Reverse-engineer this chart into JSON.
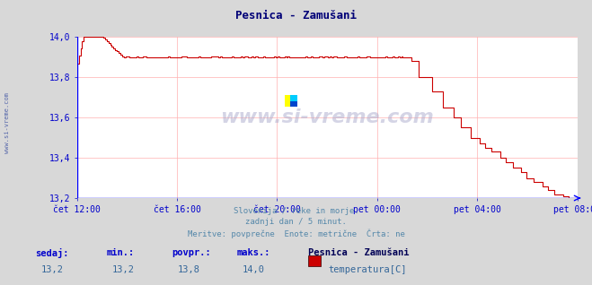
{
  "title": "Pesnica - Zamušani",
  "bg_color": "#d8d8d8",
  "plot_bg_color": "#ffffff",
  "line_color": "#cc0000",
  "grid_color": "#ffb0b0",
  "axis_color": "#0000cc",
  "title_color": "#000077",
  "watermark": "www.si-vreme.com",
  "subtitle1": "Slovenija / reke in morje.",
  "subtitle2": "zadnji dan / 5 minut.",
  "subtitle3": "Meritve: povprečne  Enote: metrične  Črta: ne",
  "legend_station": "Pesnica - Zamušani",
  "legend_param": "temperatura[C]",
  "stat_label_sedaj": "sedaj:",
  "stat_label_min": "min.:",
  "stat_label_povpr": "povpr.:",
  "stat_label_maks": "maks.:",
  "stat_sedaj": "13,2",
  "stat_min": "13,2",
  "stat_povpr": "13,8",
  "stat_maks": "14,0",
  "ylim": [
    13.2,
    14.0
  ],
  "yticks": [
    13.2,
    13.4,
    13.6,
    13.8,
    14.0
  ],
  "xtick_labels": [
    "čet 12:00",
    "čet 16:00",
    "čet 20:00",
    "pet 00:00",
    "pet 04:00",
    "pet 08:00"
  ],
  "n_points": 288,
  "left_label": "www.si-vreme.com"
}
